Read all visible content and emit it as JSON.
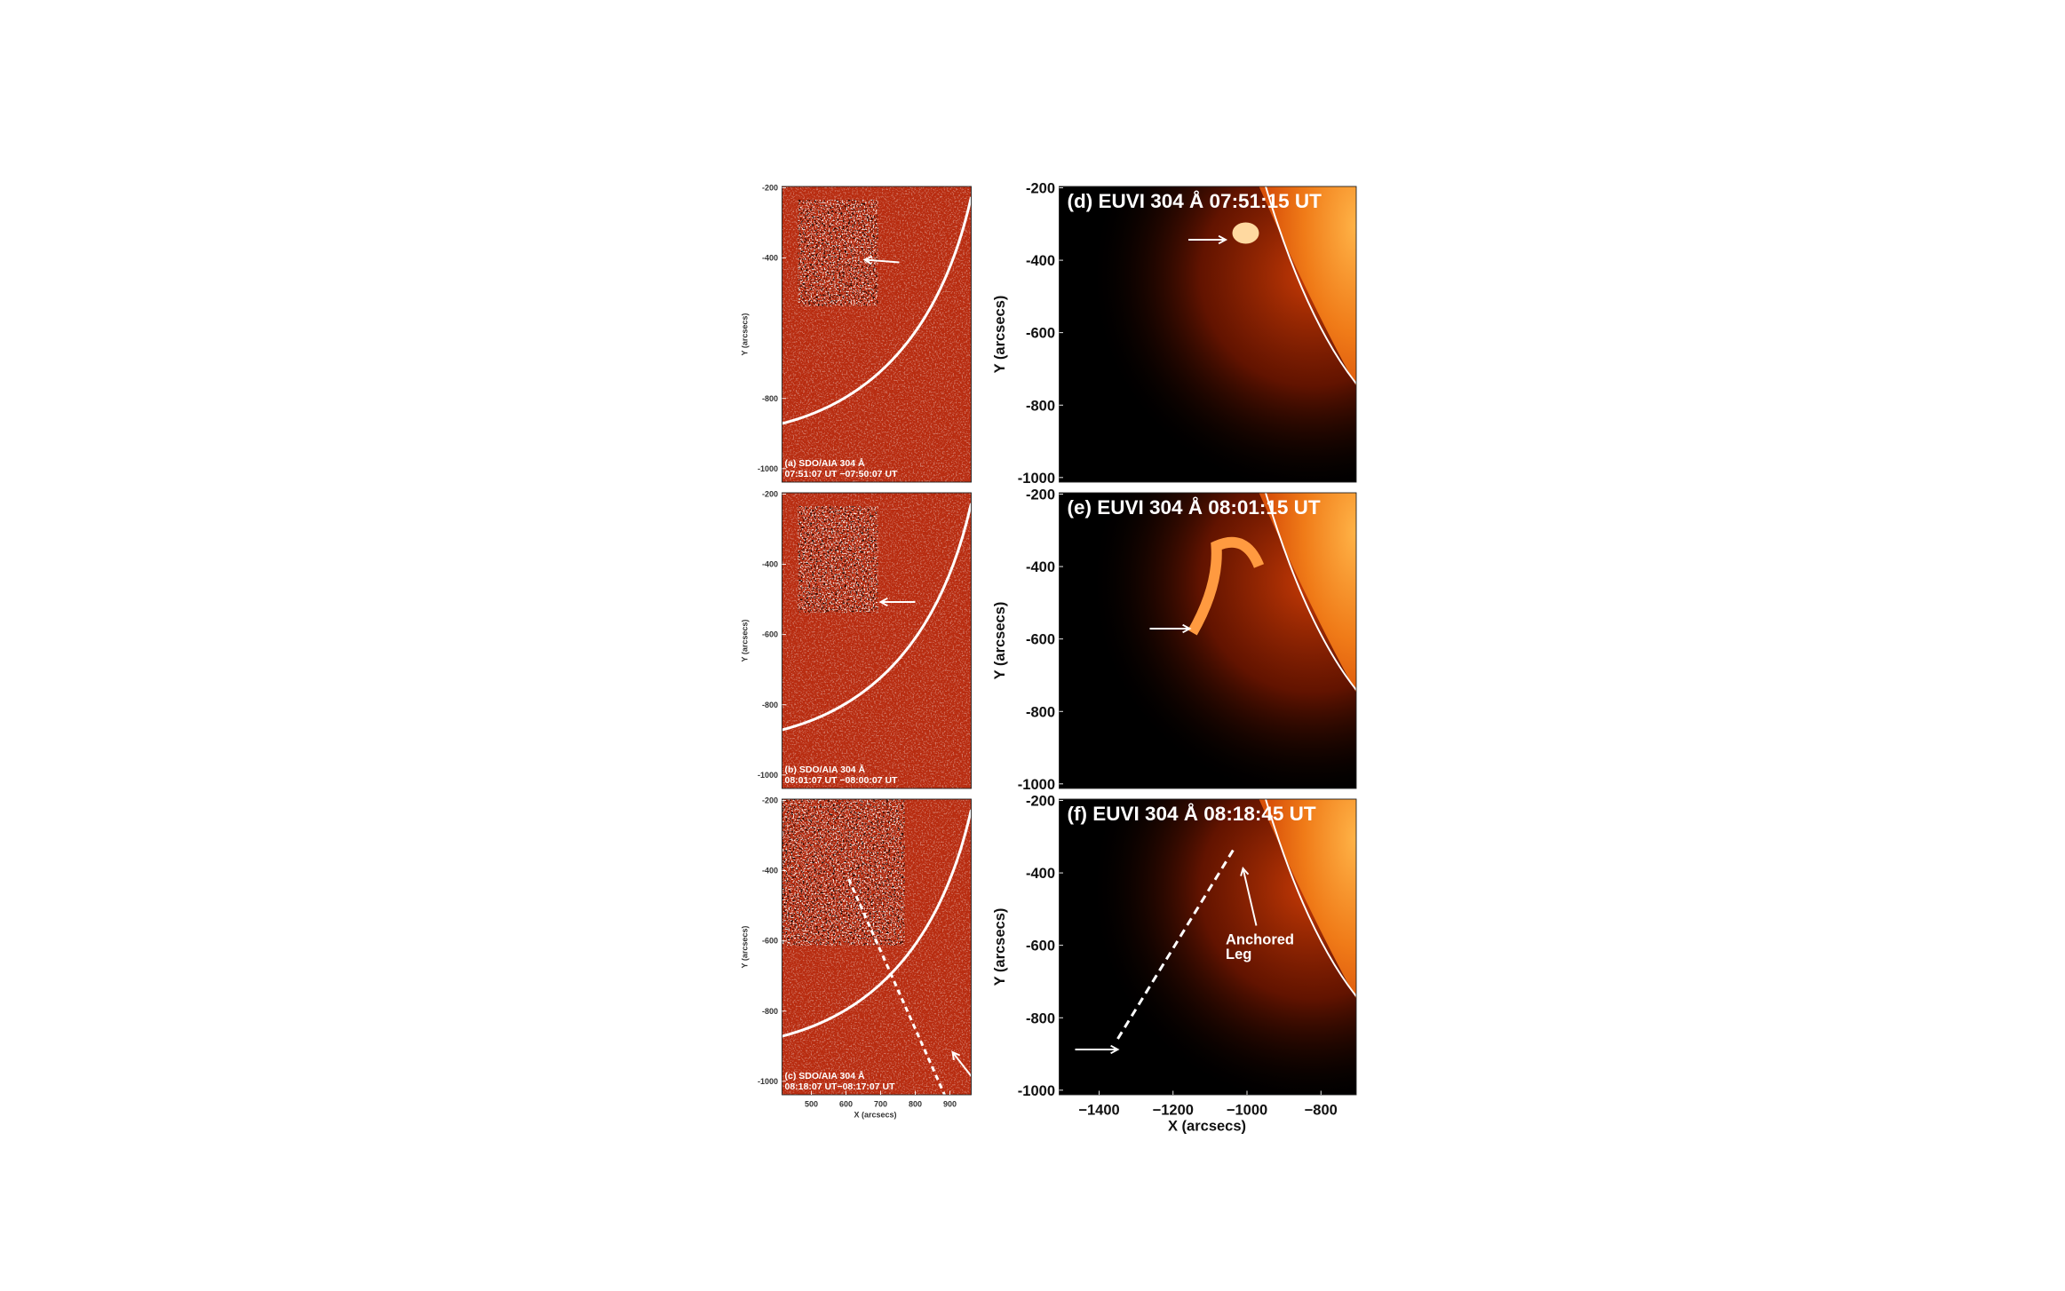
{
  "panels": [
    {
      "lines": [
        "(a) SDO/AIA 304 Å",
        "07:51:07 UT −07:50:07 UT"
      ],
      "yticks": [
        -200,
        -400,
        -800,
        -1000
      ],
      "ylabel": "Y (arcsecs)"
    },
    {
      "lines": [
        "(b) SDO/AIA 304 Å",
        "08:01:07 UT −08:00:07 UT"
      ],
      "yticks": [
        -200,
        -400,
        -600,
        -800,
        -1000
      ],
      "ylabel": "Y (arcsecs)"
    },
    {
      "lines": [
        "(c) SDO/AIA 304 Å",
        "08:18:07 UT−08:17:07 UT"
      ],
      "yticks": [
        -200,
        -400,
        -600,
        -800,
        -1000
      ],
      "ylabel": "Y (arcsecs)",
      "xticks": [
        500,
        600,
        700,
        800,
        900
      ],
      "xlabel": "X (arcsecs)"
    },
    {
      "lines": [
        "(d) EUVI 304 Å 07:51:15 UT"
      ],
      "yticks": [
        -200,
        -400,
        -600,
        -800,
        -1000
      ],
      "ylabel": "Y (arcsecs)"
    },
    {
      "lines": [
        "(e) EUVI 304 Å 08:01:15 UT"
      ],
      "yticks": [
        -200,
        -400,
        -600,
        -800,
        -1000
      ],
      "ylabel": "Y (arcsecs)"
    },
    {
      "lines": [
        "(f) EUVI 304 Å 08:18:45 UT"
      ],
      "yticks": [
        -200,
        -400,
        -600,
        -800,
        -1000
      ],
      "ylabel": "Y (arcsecs)",
      "xticks": [
        "−1400",
        "−1200",
        "−1000",
        "−800"
      ],
      "xlabel": "X (arcsecs)",
      "annotation": [
        "Anchored",
        "Leg"
      ]
    }
  ]
}
